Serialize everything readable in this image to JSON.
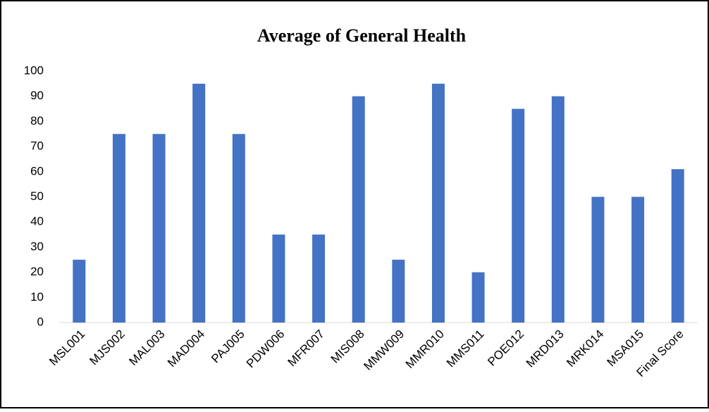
{
  "chart_data": {
    "type": "bar",
    "title": "Average of General Health",
    "categories": [
      "MSL001",
      "MJS002",
      "MAL003",
      "MAD004",
      "PAJ005",
      "PDW006",
      "MFR007",
      "MIS008",
      "MMW009",
      "MMR010",
      "MMS011",
      "POE012",
      "MRD013",
      "MRK014",
      "MSA015",
      "Final Score"
    ],
    "values": [
      25,
      75,
      75,
      95,
      75,
      35,
      35,
      90,
      25,
      95,
      20,
      85,
      90,
      50,
      50,
      61
    ],
    "color": "#4472c4",
    "ylim": [
      0,
      100
    ],
    "yticks": [
      0,
      10,
      20,
      30,
      40,
      50,
      60,
      70,
      80,
      90,
      100
    ],
    "grid": false
  }
}
